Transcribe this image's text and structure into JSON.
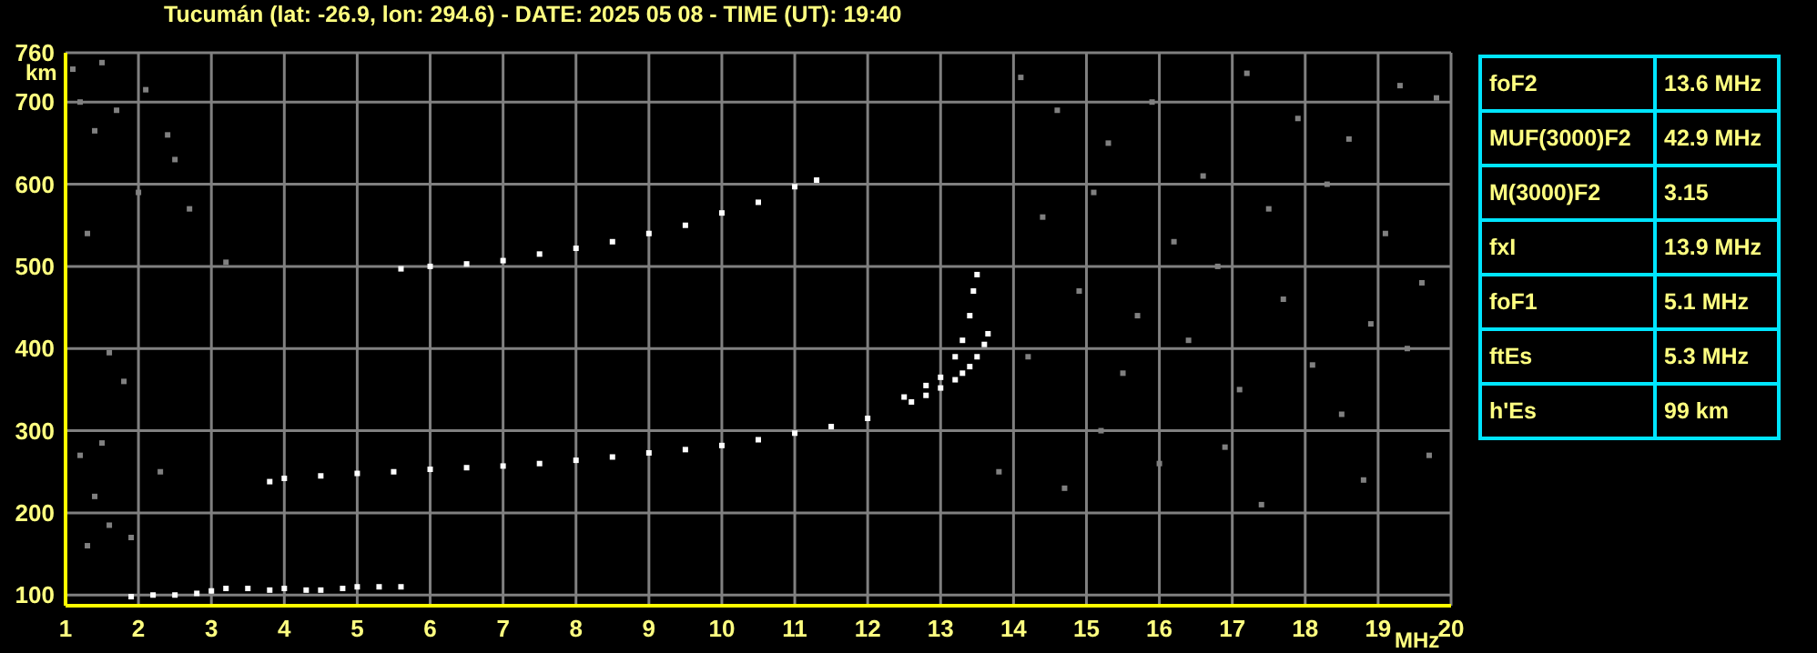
{
  "chart_data": {
    "type": "scatter",
    "title": "Tucumán (lat: -26.9, lon: 294.6) - DATE: 2025 05 08 - TIME (UT): 19:40",
    "xlabel": "MHz",
    "ylabel": "km",
    "xlim": [
      1,
      20
    ],
    "xticks": [
      1,
      2,
      3,
      4,
      5,
      6,
      7,
      8,
      9,
      10,
      11,
      12,
      13,
      14,
      15,
      16,
      17,
      18,
      19,
      20
    ],
    "ylim": [
      87,
      760
    ],
    "yticks": [
      100,
      200,
      300,
      400,
      500,
      600,
      700,
      760
    ],
    "grid": true,
    "marker": "square",
    "series": [
      {
        "color": "#ffffff",
        "x": [
          3.8,
          4,
          4.5,
          5,
          5.5,
          6,
          6.5,
          7,
          7.5,
          8,
          8.5,
          9,
          9.5,
          10,
          10.5,
          11,
          11.5,
          12,
          12.5,
          12.8,
          13,
          13.2,
          13.3,
          13.4,
          13.45,
          13.5
        ],
        "values": [
          238,
          242,
          245,
          248,
          250,
          253,
          255,
          257,
          260,
          264,
          268,
          273,
          277,
          282,
          289,
          297,
          305,
          315,
          341,
          355,
          365,
          390,
          410,
          440,
          470,
          490
        ]
      },
      {
        "color": "#ffffff",
        "x": [
          12.6,
          12.8,
          13,
          13.2,
          13.3,
          13.4,
          13.5,
          13.6,
          13.65
        ],
        "values": [
          335,
          343,
          352,
          362,
          370,
          378,
          390,
          405,
          418
        ]
      },
      {
        "color": "#ffffff",
        "x": [
          5.6,
          6,
          6.5,
          7,
          7.5,
          8,
          8.5,
          9,
          9.5,
          10,
          10.5,
          11,
          11.3
        ],
        "values": [
          497,
          500,
          503,
          507,
          515,
          522,
          530,
          540,
          550,
          565,
          578,
          597,
          605
        ]
      },
      {
        "color": "#ffffff",
        "x": [
          1.9,
          2.2,
          2.5,
          2.8,
          3,
          3.2,
          3.5,
          3.8,
          4,
          4.3,
          4.5,
          4.8,
          5,
          5.3,
          5.6
        ],
        "values": [
          98,
          100,
          100,
          102,
          105,
          108,
          108,
          106,
          108,
          106,
          106,
          108,
          110,
          110,
          110
        ]
      },
      {
        "color": "#808080",
        "x": [
          1.1,
          1.2,
          1.4,
          1.5,
          1.7,
          2,
          2.1,
          1.3,
          1.6,
          1.8,
          2.4,
          2.7,
          1.2,
          1.5,
          2.3,
          3.2,
          1.4,
          1.9,
          1.6,
          1.3,
          2.5,
          14.1,
          14.6,
          15.3,
          15.9,
          16.6,
          17.2,
          17.9,
          18.6,
          19.3,
          19.8,
          14.4,
          15.1,
          16.2,
          17.5,
          18.3,
          19.1,
          14.9,
          15.7,
          16.8,
          17.7,
          18.9,
          19.6,
          14.2,
          15.5,
          16.4,
          17.1,
          18.1,
          19.4,
          15.2,
          16.9,
          18.5,
          13.8,
          14.7,
          16,
          17.4,
          18.8,
          19.7
        ],
        "values": [
          740,
          700,
          665,
          748,
          690,
          590,
          715,
          540,
          395,
          360,
          660,
          570,
          270,
          285,
          250,
          505,
          220,
          170,
          185,
          160,
          630,
          730,
          690,
          650,
          700,
          610,
          735,
          680,
          655,
          720,
          705,
          560,
          590,
          530,
          570,
          600,
          540,
          470,
          440,
          500,
          460,
          430,
          480,
          390,
          370,
          410,
          350,
          380,
          400,
          300,
          280,
          320,
          250,
          230,
          260,
          210,
          240,
          270
        ]
      }
    ],
    "annotations": [
      "foF2",
      "13.6 MHz",
      "MUF(3000)F2",
      "42.9 MHz",
      "M(3000)F2",
      "3.15",
      "fxI",
      "13.9 MHz",
      "foF1",
      "5.1 MHz",
      "ftEs",
      "5.3 MHz",
      "h'Es",
      "99 km"
    ]
  }
}
